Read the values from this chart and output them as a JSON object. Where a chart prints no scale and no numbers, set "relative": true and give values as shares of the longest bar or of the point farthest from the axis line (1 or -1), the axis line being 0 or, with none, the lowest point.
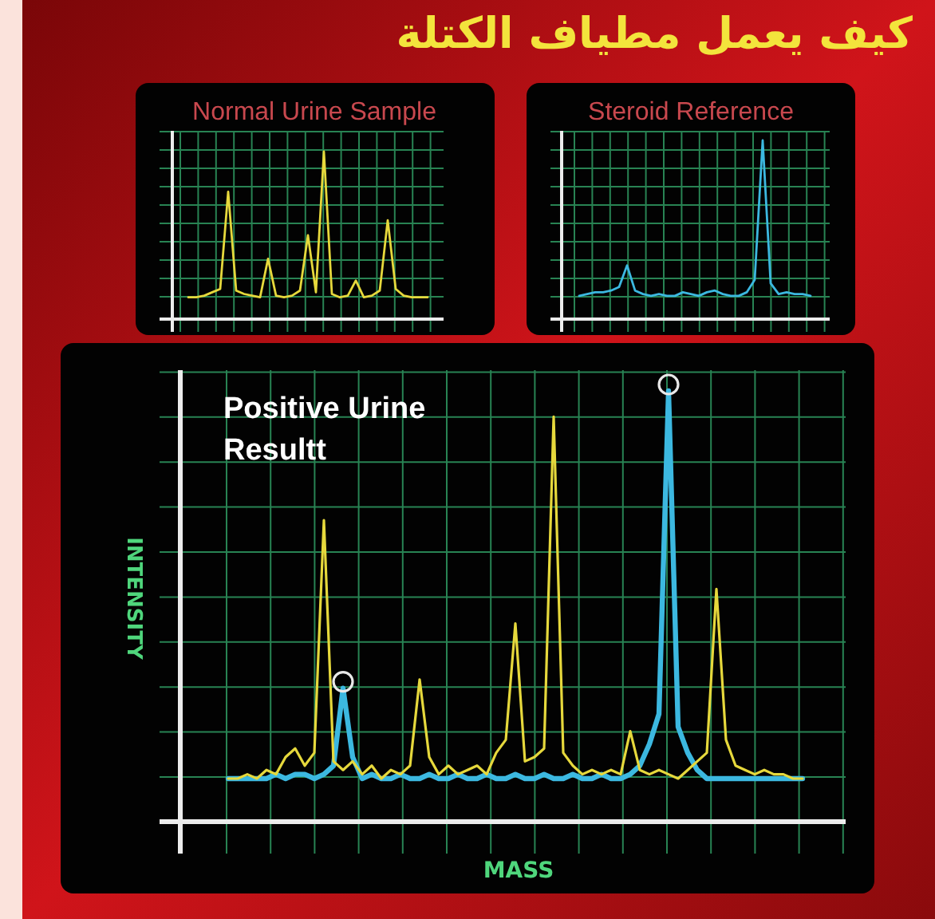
{
  "chart_data": [
    {
      "type": "other",
      "title": "كيف يعمل مطياف الكتلة"
    },
    {
      "type": "line",
      "title": "Normal Urine Sample",
      "relative": true,
      "grid": true,
      "categories": [
        null,
        null,
        null,
        null,
        null,
        null,
        null,
        null,
        null,
        null,
        null,
        null,
        null,
        null,
        null,
        null,
        null,
        null,
        null,
        null,
        null,
        null,
        null,
        null,
        null,
        null,
        null,
        null,
        null,
        null,
        null
      ],
      "series": [
        {
          "color": "#e6d83c",
          "values": [
            0.13,
            0.13,
            0.14,
            0.16,
            0.18,
            0.76,
            0.17,
            0.15,
            0.14,
            0.13,
            0.36,
            0.14,
            0.13,
            0.14,
            0.17,
            0.5,
            0.16,
            1,
            0.15,
            0.13,
            0.14,
            0.23,
            0.13,
            0.14,
            0.17,
            0.59,
            0.18,
            0.14,
            0.13,
            0.13,
            0.13
          ]
        }
      ]
    },
    {
      "type": "line",
      "title": "Steroid Reference",
      "relative": true,
      "grid": true,
      "categories": [
        null,
        null,
        null,
        null,
        null,
        null,
        null,
        null,
        null,
        null,
        null,
        null,
        null,
        null,
        null,
        null,
        null,
        null,
        null,
        null,
        null,
        null,
        null,
        null,
        null,
        null,
        null,
        null,
        null,
        null
      ],
      "series": [
        {
          "color": "#3cb8e0",
          "values": [
            0.13,
            0.14,
            0.15,
            0.15,
            0.16,
            0.18,
            0.3,
            0.16,
            0.14,
            0.13,
            0.14,
            0.13,
            0.13,
            0.15,
            0.14,
            0.13,
            0.15,
            0.16,
            0.14,
            0.13,
            0.13,
            0.15,
            0.22,
            1,
            0.2,
            0.14,
            0.15,
            0.14,
            0.14,
            0.13
          ]
        }
      ]
    },
    {
      "type": "line",
      "title": "Positive Urine Resultt",
      "xlabel": "MASS",
      "ylabel": "INTENSITY",
      "relative": true,
      "grid": true,
      "categories": [
        null,
        null,
        null,
        null,
        null,
        null,
        null,
        null,
        null,
        null,
        null,
        null,
        null,
        null,
        null,
        null,
        null,
        null,
        null,
        null,
        null,
        null,
        null,
        null,
        null,
        null,
        null,
        null,
        null,
        null,
        null,
        null,
        null,
        null,
        null,
        null,
        null,
        null,
        null,
        null,
        null,
        null,
        null,
        null,
        null,
        null,
        null,
        null,
        null,
        null,
        null,
        null,
        null,
        null,
        null,
        null,
        null,
        null,
        null,
        null,
        null
      ],
      "series": [
        {
          "color": "#3cb8e0",
          "values": [
            0.1,
            0.1,
            0.1,
            0.1,
            0.1,
            0.11,
            0.1,
            0.11,
            0.11,
            0.1,
            0.11,
            0.13,
            0.31,
            0.15,
            0.1,
            0.11,
            0.1,
            0.1,
            0.11,
            0.1,
            0.1,
            0.11,
            0.1,
            0.1,
            0.11,
            0.1,
            0.1,
            0.11,
            0.1,
            0.1,
            0.11,
            0.1,
            0.1,
            0.11,
            0.1,
            0.1,
            0.11,
            0.1,
            0.1,
            0.11,
            0.1,
            0.1,
            0.11,
            0.13,
            0.18,
            0.25,
            1,
            0.22,
            0.16,
            0.12,
            0.1,
            0.1,
            0.1,
            0.1,
            0.1,
            0.1,
            0.1,
            0.1,
            0.1,
            0.1,
            0.1
          ]
        },
        {
          "color": "#e6d83c",
          "values": [
            0.1,
            0.1,
            0.11,
            0.1,
            0.12,
            0.11,
            0.15,
            0.17,
            0.13,
            0.16,
            0.7,
            0.14,
            0.12,
            0.14,
            0.11,
            0.13,
            0.1,
            0.12,
            0.11,
            0.13,
            0.33,
            0.15,
            0.11,
            0.13,
            0.11,
            0.12,
            0.13,
            0.11,
            0.16,
            0.19,
            0.46,
            0.14,
            0.15,
            0.17,
            0.94,
            0.16,
            0.13,
            0.11,
            0.12,
            0.11,
            0.12,
            0.11,
            0.21,
            0.12,
            0.11,
            0.12,
            0.11,
            0.1,
            0.12,
            0.14,
            0.16,
            0.54,
            0.19,
            0.13,
            0.12,
            0.11,
            0.12,
            0.11,
            0.11,
            0.1,
            0.1
          ]
        }
      ]
    }
  ]
}
